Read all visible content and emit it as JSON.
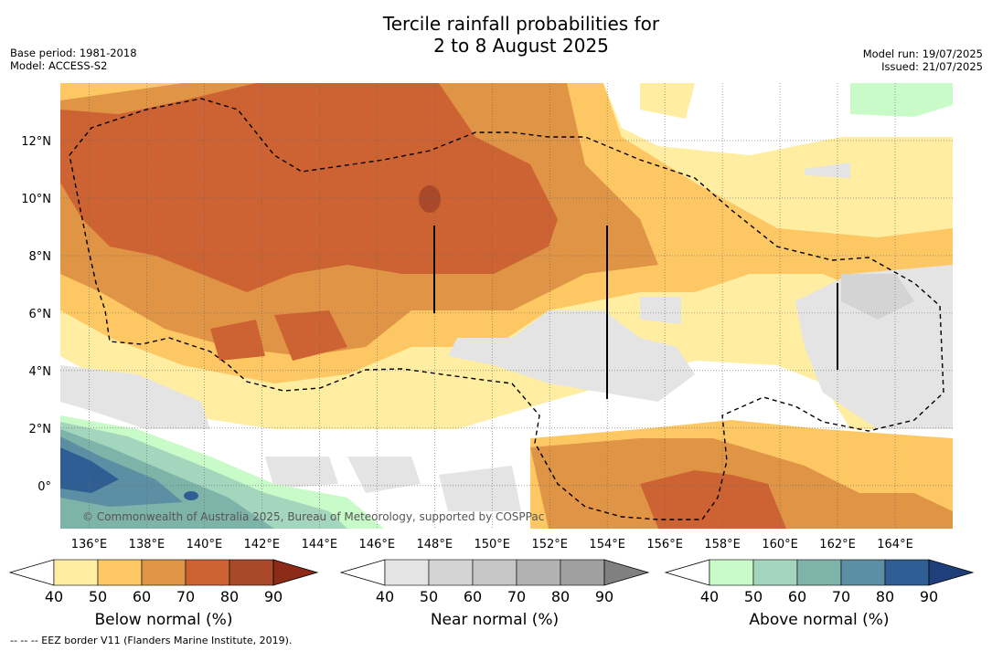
{
  "title": {
    "line1": "Tercile rainfall probabilities for",
    "line2": "2 to 8 August 2025"
  },
  "meta": {
    "base_period": "Base period: 1981-2018",
    "model": "Model: ACCESS-S2",
    "model_run": "Model run: 19/07/2025",
    "issued": "Issued: 21/07/2025"
  },
  "map": {
    "lat_range": [
      -1.5,
      14
    ],
    "lon_range": [
      135,
      166
    ],
    "lat_ticks": [
      "12°N",
      "10°N",
      "8°N",
      "6°N",
      "4°N",
      "2°N",
      "0°"
    ],
    "lat_values": [
      12,
      10,
      8,
      6,
      4,
      2,
      0
    ],
    "lon_ticks": [
      "136°E",
      "138°E",
      "140°E",
      "142°E",
      "144°E",
      "146°E",
      "148°E",
      "150°E",
      "152°E",
      "154°E",
      "156°E",
      "158°E",
      "160°E",
      "162°E",
      "164°E"
    ],
    "lon_values": [
      136,
      138,
      140,
      142,
      144,
      146,
      148,
      150,
      152,
      154,
      156,
      158,
      160,
      162,
      164
    ],
    "copyright": "© Commonwealth of Australia 2025, Bureau of Meteorology, supported by COSPPac"
  },
  "colorbars": [
    {
      "label": "Below normal (%)",
      "ticks": [
        "40",
        "50",
        "60",
        "70",
        "80",
        "90"
      ],
      "colors": [
        "#ffeea2",
        "#fdc863",
        "#e09445",
        "#cd6332",
        "#a9492a",
        "#8b2a17"
      ]
    },
    {
      "label": "Near normal (%)",
      "ticks": [
        "40",
        "50",
        "60",
        "70",
        "80",
        "90"
      ],
      "colors": [
        "#e4e4e4",
        "#d4d4d4",
        "#c6c6c6",
        "#b2b2b2",
        "#a0a0a0",
        "#808080"
      ]
    },
    {
      "label": "Above normal (%)",
      "ticks": [
        "40",
        "50",
        "60",
        "70",
        "80",
        "90"
      ],
      "colors": [
        "#c9fbc9",
        "#a4d6bd",
        "#7eb3aa",
        "#5c8fa4",
        "#2f5e94",
        "#1f3f7a"
      ]
    }
  ],
  "footer": "--  --  -- EEZ border V11 (Flanders Marine Institute, 2019)."
}
